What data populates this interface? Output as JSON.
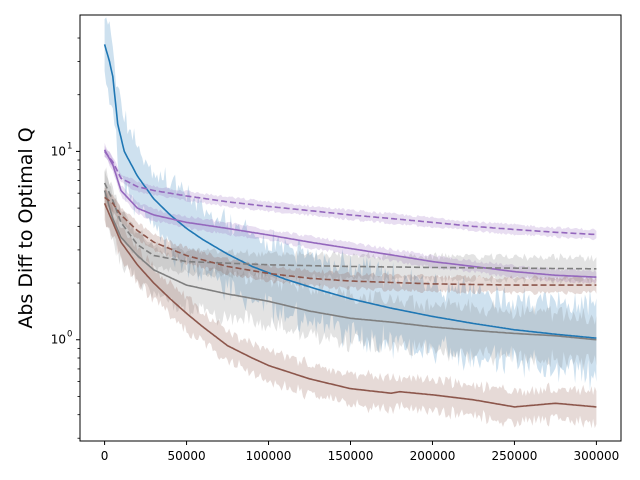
{
  "chart_data": {
    "type": "line",
    "title": "",
    "xlabel": "",
    "ylabel": "Abs Diff to Optimal Q",
    "yscale": "log",
    "xlim": [
      -15000,
      315000
    ],
    "ylim": [
      0.29,
      53
    ],
    "grid": false,
    "legend": "none",
    "x_ticks": [
      0,
      50000,
      100000,
      150000,
      200000,
      250000,
      300000
    ],
    "x_tick_labels": [
      "0",
      "50000",
      "100000",
      "150000",
      "200000",
      "250000",
      "300000"
    ],
    "y_major_ticks": [
      1,
      10
    ],
    "y_major_tick_labels": [
      "10",
      "10"
    ],
    "y_major_tick_exponents": [
      "0",
      "1"
    ],
    "y_minor_ticks": [
      0.3,
      0.4,
      0.5,
      0.6,
      0.7,
      0.8,
      0.9,
      2,
      3,
      4,
      5,
      6,
      7,
      8,
      9,
      20,
      30,
      40
    ],
    "series": [
      {
        "color": "#1f77b4",
        "style": "solid",
        "band": 0.22,
        "noise": 0.12,
        "x": [
          0,
          3000,
          5000,
          8000,
          12000,
          20000,
          30000,
          40000,
          50000,
          60000,
          75000,
          90000,
          110000,
          130000,
          150000,
          175000,
          200000,
          225000,
          250000,
          275000,
          300000
        ],
        "y": [
          37,
          30,
          25,
          14,
          10,
          7.4,
          5.6,
          4.6,
          3.9,
          3.4,
          2.85,
          2.45,
          2.1,
          1.85,
          1.65,
          1.47,
          1.33,
          1.22,
          1.13,
          1.07,
          1.02
        ]
      },
      {
        "color": "#7f7f7f",
        "style": "solid",
        "band": 0.18,
        "noise": 0.06,
        "x": [
          0,
          5000,
          10000,
          20000,
          30000,
          50000,
          75000,
          100000,
          125000,
          150000,
          175000,
          200000,
          225000,
          250000,
          275000,
          300000
        ],
        "y": [
          6.2,
          4.4,
          3.5,
          2.8,
          2.35,
          1.95,
          1.75,
          1.6,
          1.42,
          1.3,
          1.24,
          1.17,
          1.12,
          1.08,
          1.05,
          1.0
        ]
      },
      {
        "color": "#8c564b",
        "style": "solid",
        "band": 0.12,
        "noise": 0.04,
        "x": [
          0,
          5000,
          10000,
          20000,
          30000,
          40000,
          50000,
          60000,
          75000,
          90000,
          100000,
          125000,
          150000,
          175000,
          180000,
          200000,
          225000,
          250000,
          275000,
          300000
        ],
        "y": [
          5.3,
          4.2,
          3.3,
          2.5,
          2.0,
          1.65,
          1.38,
          1.17,
          0.93,
          0.8,
          0.73,
          0.62,
          0.55,
          0.52,
          0.53,
          0.51,
          0.48,
          0.44,
          0.46,
          0.44
        ]
      },
      {
        "color": "#9467bd",
        "style": "solid",
        "band": 0.06,
        "noise": 0.0,
        "x": [
          0,
          5000,
          10000,
          20000,
          30000,
          50000,
          75000,
          100000,
          125000,
          150000,
          175000,
          200000,
          225000,
          250000,
          275000,
          300000
        ],
        "y": [
          10.2,
          8.5,
          6.2,
          5.0,
          4.6,
          4.2,
          3.9,
          3.6,
          3.3,
          3.05,
          2.82,
          2.6,
          2.45,
          2.3,
          2.2,
          2.15
        ]
      },
      {
        "color": "#9467bd",
        "style": "dashed",
        "band": 0.05,
        "noise": 0.0,
        "x": [
          0,
          5000,
          10000,
          20000,
          30000,
          50000,
          75000,
          100000,
          125000,
          150000,
          175000,
          200000,
          225000,
          250000,
          275000,
          300000
        ],
        "y": [
          10.0,
          8.8,
          7.2,
          6.5,
          6.2,
          5.8,
          5.4,
          5.1,
          4.85,
          4.6,
          4.4,
          4.2,
          4.0,
          3.85,
          3.72,
          3.62
        ]
      },
      {
        "color": "#7f7f7f",
        "style": "dashed",
        "band": 0.1,
        "noise": 0.02,
        "x": [
          0,
          5000,
          10000,
          20000,
          30000,
          50000,
          75000,
          100000,
          150000,
          200000,
          250000,
          300000
        ],
        "y": [
          6.8,
          5.5,
          4.2,
          3.2,
          2.8,
          2.6,
          2.55,
          2.5,
          2.45,
          2.42,
          2.4,
          2.38
        ]
      },
      {
        "color": "#8c564b",
        "style": "dashed",
        "band": 0.08,
        "noise": 0.0,
        "x": [
          0,
          5000,
          10000,
          20000,
          30000,
          50000,
          75000,
          100000,
          125000,
          150000,
          200000,
          250000,
          300000
        ],
        "y": [
          5.7,
          5.3,
          4.6,
          3.8,
          3.3,
          2.8,
          2.45,
          2.25,
          2.12,
          2.05,
          1.98,
          1.95,
          1.95
        ]
      }
    ]
  }
}
